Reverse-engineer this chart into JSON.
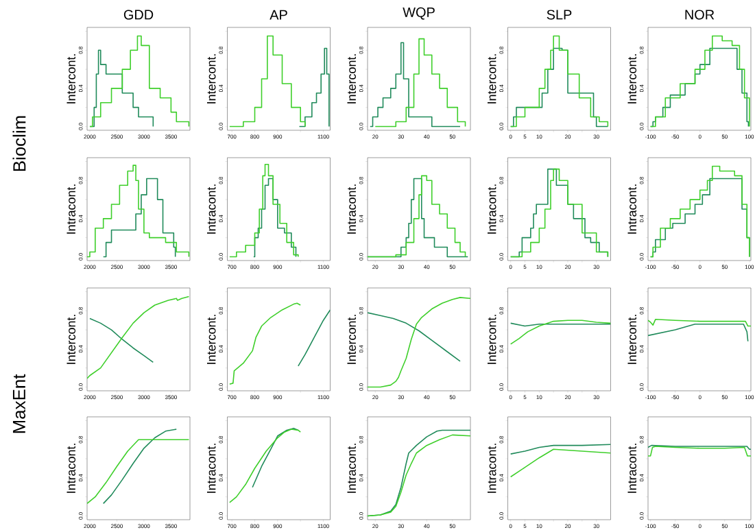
{
  "chart_data": [
    {
      "type": "step",
      "title": "GDD",
      "ylabel": "Intercont.",
      "annotations": [
        "Bioclim"
      ],
      "xlim": [
        1950,
        3850
      ],
      "xticks": [
        2000,
        2500,
        3000,
        3500
      ],
      "ylim": [
        -0.04,
        1.04
      ],
      "yticks": [
        {
          "value": 0,
          "label": "0.0"
        },
        {
          "value": 0.2,
          "label": null
        },
        {
          "value": 0.4,
          "label": "0.4"
        },
        {
          "value": 0.6,
          "label": null
        },
        {
          "value": 0.8,
          "label": "0.8"
        },
        {
          "value": 1,
          "label": null
        }
      ],
      "series": [
        {
          "color": "#1f8a5a",
          "x": [
            2000,
            2080,
            2120,
            2160,
            2200,
            2300,
            2500,
            2600,
            2800,
            2900,
            3150,
            3170
          ],
          "values": [
            0,
            0.2,
            0.55,
            0.8,
            0.65,
            0.55,
            0.55,
            0.35,
            0.2,
            0.1,
            0.1,
            0
          ]
        },
        {
          "color": "#3ecf2a",
          "x": [
            2000,
            2050,
            2200,
            2400,
            2600,
            2750,
            2880,
            2950,
            3100,
            3300,
            3500,
            3600,
            3800,
            3830
          ],
          "values": [
            0,
            0.1,
            0.25,
            0.4,
            0.6,
            0.8,
            0.95,
            0.85,
            0.4,
            0.3,
            0.15,
            0.05,
            0.05,
            0
          ]
        }
      ]
    },
    {
      "type": "step",
      "title": "AP",
      "ylabel": "Intercont.",
      "xlim": [
        680,
        1130
      ],
      "xticks": [
        700,
        800,
        900,
        {
          "value": 1000,
          "label": null
        },
        1100
      ],
      "ylim": [
        -0.04,
        1.04
      ],
      "yticks": [
        {
          "value": 0,
          "label": "0.0"
        },
        {
          "value": 0.2,
          "label": null
        },
        {
          "value": 0.4,
          "label": "0.4"
        },
        {
          "value": 0.6,
          "label": null
        },
        {
          "value": 0.8,
          "label": "0.8"
        },
        {
          "value": 1,
          "label": null
        }
      ],
      "series": [
        {
          "color": "#1f8a5a",
          "x": [
            995,
            1020,
            1050,
            1070,
            1090,
            1105,
            1115,
            1125
          ],
          "values": [
            0,
            0.1,
            0.25,
            0.35,
            0.55,
            0.82,
            0.55,
            0
          ]
        },
        {
          "color": "#3ecf2a",
          "x": [
            690,
            750,
            800,
            830,
            855,
            880,
            920,
            960,
            1000,
            1020
          ],
          "values": [
            0,
            0.05,
            0.2,
            0.5,
            0.95,
            0.75,
            0.45,
            0.2,
            0.05,
            0
          ]
        }
      ]
    },
    {
      "type": "step",
      "title": "WQP",
      "ylabel": "Intercont.",
      "xlim": [
        17,
        57
      ],
      "xticks": [
        20,
        30,
        40,
        50
      ],
      "ylim": [
        -0.04,
        1.04
      ],
      "yticks": [
        {
          "value": 0,
          "label": "0.0"
        },
        {
          "value": 0.2,
          "label": null
        },
        {
          "value": 0.4,
          "label": "0.4"
        },
        {
          "value": 0.6,
          "label": null
        },
        {
          "value": 0.8,
          "label": "0.8"
        },
        {
          "value": 1,
          "label": null
        }
      ],
      "series": [
        {
          "color": "#1f8a5a",
          "x": [
            18,
            19,
            21,
            23,
            26,
            28,
            30,
            31,
            33,
            40,
            42,
            53
          ],
          "values": [
            0,
            0.1,
            0.2,
            0.3,
            0.4,
            0.55,
            0.88,
            0.5,
            0.1,
            0.1,
            0,
            0
          ]
        },
        {
          "color": "#3ecf2a",
          "x": [
            20,
            28,
            32,
            35,
            37,
            39,
            42,
            45,
            48,
            52,
            55
          ],
          "values": [
            0,
            0.05,
            0.2,
            0.55,
            0.92,
            0.75,
            0.55,
            0.4,
            0.2,
            0.05,
            0
          ]
        }
      ]
    },
    {
      "type": "step",
      "title": "SLP",
      "ylabel": "Intercont.",
      "xlim": [
        -1,
        35
      ],
      "xticks": [
        0,
        5,
        10,
        {
          "value": 15,
          "label": null
        },
        20,
        {
          "value": 25,
          "label": null
        },
        30
      ],
      "ylim": [
        -0.04,
        1.04
      ],
      "yticks": [
        {
          "value": 0,
          "label": "0.0"
        },
        {
          "value": 0.2,
          "label": null
        },
        {
          "value": 0.4,
          "label": "0.4"
        },
        {
          "value": 0.6,
          "label": null
        },
        {
          "value": 0.8,
          "label": "0.8"
        },
        {
          "value": 1,
          "label": null
        }
      ],
      "series": [
        {
          "color": "#1f8a5a",
          "x": [
            0,
            1,
            2,
            8,
            11,
            13,
            15,
            18,
            20,
            25,
            29,
            30,
            34
          ],
          "values": [
            0,
            0.1,
            0.2,
            0.2,
            0.35,
            0.6,
            0.82,
            0.8,
            0.35,
            0.35,
            0.1,
            0,
            0
          ]
        },
        {
          "color": "#3ecf2a",
          "x": [
            0,
            2,
            5,
            10,
            12,
            14,
            15,
            17,
            20,
            24,
            28,
            31,
            34
          ],
          "values": [
            0,
            0.1,
            0.2,
            0.4,
            0.6,
            0.8,
            0.95,
            0.8,
            0.55,
            0.3,
            0.1,
            0.05,
            0
          ]
        }
      ]
    },
    {
      "type": "step",
      "title": "NOR",
      "ylabel": "Intercont.",
      "xlim": [
        -105,
        103
      ],
      "xticks": [
        -100,
        -50,
        0,
        50,
        100
      ],
      "ylim": [
        -0.04,
        1.04
      ],
      "yticks": [
        {
          "value": 0,
          "label": "0.0"
        },
        {
          "value": 0.2,
          "label": null
        },
        {
          "value": 0.4,
          "label": "0.4"
        },
        {
          "value": 0.6,
          "label": null
        },
        {
          "value": 0.8,
          "label": "0.8"
        },
        {
          "value": 1,
          "label": null
        }
      ],
      "series": [
        {
          "color": "#1f8a5a",
          "x": [
            -100,
            -95,
            -90,
            -75,
            -60,
            -30,
            -10,
            0,
            20,
            60,
            75,
            85,
            95,
            98
          ],
          "values": [
            0,
            0.05,
            0.1,
            0.2,
            0.33,
            0.45,
            0.55,
            0.65,
            0.82,
            0.82,
            0.6,
            0.35,
            0.05,
            0
          ]
        },
        {
          "color": "#3ecf2a",
          "x": [
            -100,
            -90,
            -70,
            -40,
            -10,
            10,
            25,
            45,
            65,
            80,
            90,
            100
          ],
          "values": [
            0,
            0.1,
            0.3,
            0.45,
            0.6,
            0.8,
            0.95,
            0.9,
            0.85,
            0.6,
            0.3,
            0
          ]
        }
      ]
    },
    {
      "type": "step",
      "ylabel": "Intracont.",
      "xlim": [
        1950,
        3850
      ],
      "xticks": [
        2000,
        2500,
        3000,
        3500
      ],
      "ylim": [
        -0.04,
        1.04
      ],
      "yticks": [
        {
          "value": 0,
          "label": "0.0"
        },
        {
          "value": 0.2,
          "label": null
        },
        {
          "value": 0.4,
          "label": "0.4"
        },
        {
          "value": 0.6,
          "label": null
        },
        {
          "value": 0.8,
          "label": "0.8"
        },
        {
          "value": 1,
          "label": null
        }
      ],
      "series": [
        {
          "color": "#1f8a5a",
          "x": [
            2250,
            2300,
            2400,
            2700,
            2850,
            2950,
            3050,
            3150,
            3250,
            3350,
            3450,
            3550,
            3580
          ],
          "values": [
            0,
            0.15,
            0.28,
            0.28,
            0.45,
            0.65,
            0.82,
            0.82,
            0.6,
            0.25,
            0.25,
            0.1,
            0
          ]
        },
        {
          "color": "#3ecf2a",
          "x": [
            1950,
            2000,
            2100,
            2250,
            2400,
            2550,
            2700,
            2800,
            2850,
            2900,
            3000,
            3100,
            3400,
            3600,
            3800,
            3830
          ],
          "values": [
            0,
            0.05,
            0.3,
            0.4,
            0.55,
            0.75,
            0.9,
            0.96,
            0.8,
            0.5,
            0.25,
            0.2,
            0.15,
            0.05,
            0.05,
            0
          ]
        }
      ]
    },
    {
      "type": "step",
      "ylabel": "Intracont.",
      "xlim": [
        680,
        1130
      ],
      "xticks": [
        700,
        800,
        900,
        {
          "value": 1000,
          "label": null
        },
        1100
      ],
      "ylim": [
        -0.04,
        1.04
      ],
      "yticks": [
        {
          "value": 0,
          "label": "0.0"
        },
        {
          "value": 0.2,
          "label": null
        },
        {
          "value": 0.4,
          "label": "0.4"
        },
        {
          "value": 0.6,
          "label": null
        },
        {
          "value": 0.8,
          "label": "0.8"
        },
        {
          "value": 1,
          "label": null
        }
      ],
      "series": [
        {
          "color": "#1f8a5a",
          "x": [
            795,
            800,
            815,
            830,
            845,
            860,
            880,
            900,
            930,
            960,
            980
          ],
          "values": [
            0,
            0.2,
            0.3,
            0.5,
            0.75,
            0.82,
            0.6,
            0.3,
            0.25,
            0.1,
            0
          ]
        },
        {
          "color": "#3ecf2a",
          "x": [
            690,
            720,
            760,
            800,
            820,
            835,
            845,
            860,
            880,
            910,
            940,
            970,
            990
          ],
          "values": [
            0,
            0.05,
            0.12,
            0.25,
            0.5,
            0.85,
            0.97,
            0.85,
            0.55,
            0.35,
            0.15,
            0.02,
            0
          ]
        }
      ]
    },
    {
      "type": "step",
      "ylabel": "Intracont.",
      "xlim": [
        17,
        57
      ],
      "xticks": [
        20,
        30,
        40,
        50
      ],
      "ylim": [
        -0.04,
        1.04
      ],
      "yticks": [
        {
          "value": 0,
          "label": "0.0"
        },
        {
          "value": 0.2,
          "label": null
        },
        {
          "value": 0.4,
          "label": "0.4"
        },
        {
          "value": 0.6,
          "label": null
        },
        {
          "value": 0.8,
          "label": "0.8"
        },
        {
          "value": 1,
          "label": null
        }
      ],
      "series": [
        {
          "color": "#1f8a5a",
          "x": [
            17,
            29,
            30,
            32,
            33,
            34,
            35,
            37,
            38,
            39,
            43,
            47,
            48,
            56
          ],
          "values": [
            0,
            0,
            0.1,
            0.2,
            0.35,
            0.6,
            0.82,
            0.82,
            0.4,
            0.2,
            0.1,
            0.1,
            0,
            0
          ]
        },
        {
          "color": "#3ecf2a",
          "x": [
            17,
            27,
            28,
            32,
            35,
            37,
            38,
            40,
            42,
            45,
            48,
            51,
            53,
            55
          ],
          "values": [
            0,
            0,
            0.02,
            0.15,
            0.4,
            0.65,
            0.85,
            0.8,
            0.55,
            0.45,
            0.3,
            0.15,
            0.05,
            0
          ]
        }
      ]
    },
    {
      "type": "step",
      "ylabel": "Intracont.",
      "xlim": [
        -1,
        35
      ],
      "xticks": [
        0,
        5,
        10,
        {
          "value": 15,
          "label": null
        },
        20,
        {
          "value": 25,
          "label": null
        },
        30
      ],
      "ylim": [
        -0.04,
        1.04
      ],
      "yticks": [
        {
          "value": 0,
          "label": "0.0"
        },
        {
          "value": 0.2,
          "label": null
        },
        {
          "value": 0.4,
          "label": "0.4"
        },
        {
          "value": 0.6,
          "label": null
        },
        {
          "value": 0.8,
          "label": "0.8"
        },
        {
          "value": 1,
          "label": null
        }
      ],
      "series": [
        {
          "color": "#1f8a5a",
          "x": [
            0,
            3,
            4,
            7,
            8,
            9,
            12,
            13,
            15,
            16,
            20,
            22,
            26,
            28,
            31,
            34
          ],
          "values": [
            0,
            0.05,
            0.2,
            0.3,
            0.45,
            0.55,
            0.55,
            0.92,
            0.92,
            0.75,
            0.55,
            0.4,
            0.2,
            0.15,
            0.05,
            0
          ]
        },
        {
          "color": "#3ecf2a",
          "x": [
            0,
            4,
            7,
            10,
            12,
            14,
            15,
            17,
            20,
            25,
            30,
            34
          ],
          "values": [
            0,
            0.05,
            0.15,
            0.3,
            0.5,
            0.8,
            0.92,
            0.8,
            0.55,
            0.25,
            0.05,
            0
          ]
        }
      ]
    },
    {
      "type": "step",
      "ylabel": "Intracont.",
      "xlim": [
        -105,
        103
      ],
      "xticks": [
        -100,
        -50,
        0,
        50,
        100
      ],
      "ylim": [
        -0.04,
        1.04
      ],
      "yticks": [
        {
          "value": 0,
          "label": "0.0"
        },
        {
          "value": 0.2,
          "label": null
        },
        {
          "value": 0.4,
          "label": "0.4"
        },
        {
          "value": 0.6,
          "label": null
        },
        {
          "value": 0.8,
          "label": "0.8"
        },
        {
          "value": 1,
          "label": null
        }
      ],
      "series": [
        {
          "color": "#1f8a5a",
          "x": [
            -100,
            -95,
            -90,
            -70,
            -55,
            -30,
            -10,
            5,
            20,
            75,
            85,
            95,
            100
          ],
          "values": [
            0,
            0.05,
            0.18,
            0.3,
            0.35,
            0.45,
            0.55,
            0.65,
            0.82,
            0.82,
            0.5,
            0.2,
            0
          ]
        },
        {
          "color": "#3ecf2a",
          "x": [
            -100,
            -95,
            -80,
            -60,
            -40,
            -20,
            0,
            15,
            25,
            40,
            70,
            85,
            95,
            100
          ],
          "values": [
            0,
            0.1,
            0.3,
            0.4,
            0.5,
            0.6,
            0.7,
            0.8,
            0.95,
            0.9,
            0.85,
            0.55,
            0.2,
            0
          ]
        }
      ]
    },
    {
      "type": "line",
      "ylabel": "Intercont.",
      "annotations": [
        "MaxEnt"
      ],
      "xlim": [
        1950,
        3850
      ],
      "xticks": [
        2000,
        2500,
        3000,
        3500
      ],
      "ylim": [
        -0.04,
        1.04
      ],
      "yticks": [
        {
          "value": 0,
          "label": "0.0"
        },
        {
          "value": 0.2,
          "label": null
        },
        {
          "value": 0.4,
          "label": "0.4"
        },
        {
          "value": 0.6,
          "label": null
        },
        {
          "value": 0.8,
          "label": "0.8"
        },
        {
          "value": 1,
          "label": null
        }
      ],
      "series": [
        {
          "color": "#1f8a5a",
          "x": [
            2000,
            2200,
            2400,
            2600,
            2800,
            3000,
            3170
          ],
          "values": [
            0.72,
            0.67,
            0.6,
            0.5,
            0.41,
            0.33,
            0.26
          ]
        },
        {
          "color": "#3ecf2a",
          "x": [
            1950,
            2000,
            2200,
            2400,
            2600,
            2800,
            3000,
            3200,
            3450,
            3600,
            3620,
            3700,
            3830
          ],
          "values": [
            0.09,
            0.12,
            0.2,
            0.36,
            0.52,
            0.67,
            0.78,
            0.86,
            0.91,
            0.93,
            0.91,
            0.93,
            0.95
          ]
        }
      ]
    },
    {
      "type": "line",
      "ylabel": "Intercont.",
      "xlim": [
        680,
        1130
      ],
      "xticks": [
        700,
        800,
        900,
        {
          "value": 1000,
          "label": null
        },
        1100
      ],
      "ylim": [
        -0.04,
        1.04
      ],
      "yticks": [
        {
          "value": 0,
          "label": "0.0"
        },
        {
          "value": 0.2,
          "label": null
        },
        {
          "value": 0.4,
          "label": "0.4"
        },
        {
          "value": 0.6,
          "label": null
        },
        {
          "value": 0.8,
          "label": "0.8"
        },
        {
          "value": 1,
          "label": null
        }
      ],
      "series": [
        {
          "color": "#1f8a5a",
          "x": [
            990,
            1020,
            1060,
            1100,
            1130
          ],
          "values": [
            0.22,
            0.34,
            0.52,
            0.7,
            0.81
          ]
        },
        {
          "color": "#3ecf2a",
          "x": [
            690,
            705,
            710,
            750,
            790,
            805,
            830,
            870,
            920,
            970,
            985,
            1000
          ],
          "values": [
            0.03,
            0.04,
            0.17,
            0.25,
            0.38,
            0.52,
            0.64,
            0.73,
            0.81,
            0.87,
            0.88,
            0.86
          ]
        }
      ]
    },
    {
      "type": "line",
      "ylabel": "Intercont.",
      "xlim": [
        17,
        57
      ],
      "xticks": [
        20,
        30,
        40,
        50
      ],
      "ylim": [
        -0.04,
        1.04
      ],
      "yticks": [
        {
          "value": 0,
          "label": "0.0"
        },
        {
          "value": 0.2,
          "label": null
        },
        {
          "value": 0.4,
          "label": "0.4"
        },
        {
          "value": 0.6,
          "label": null
        },
        {
          "value": 0.8,
          "label": "0.8"
        },
        {
          "value": 1,
          "label": null
        }
      ],
      "series": [
        {
          "color": "#1f8a5a",
          "x": [
            17,
            22,
            27,
            32,
            37,
            42,
            47,
            53
          ],
          "values": [
            0.78,
            0.75,
            0.72,
            0.67,
            0.59,
            0.49,
            0.39,
            0.27
          ]
        },
        {
          "color": "#3ecf2a",
          "x": [
            17,
            22,
            26,
            28,
            29,
            30,
            32,
            34,
            36,
            38,
            42,
            46,
            50,
            53,
            57
          ],
          "values": [
            0,
            0,
            0.02,
            0.06,
            0.1,
            0.17,
            0.3,
            0.5,
            0.66,
            0.73,
            0.82,
            0.88,
            0.92,
            0.94,
            0.93
          ]
        }
      ]
    },
    {
      "type": "line",
      "ylabel": "Intercont.",
      "xlim": [
        -1,
        35
      ],
      "xticks": [
        0,
        5,
        10,
        {
          "value": 15,
          "label": null
        },
        20,
        {
          "value": 25,
          "label": null
        },
        30
      ],
      "ylim": [
        -0.04,
        1.04
      ],
      "yticks": [
        {
          "value": 0,
          "label": "0.0"
        },
        {
          "value": 0.2,
          "label": null
        },
        {
          "value": 0.4,
          "label": "0.4"
        },
        {
          "value": 0.6,
          "label": null
        },
        {
          "value": 0.8,
          "label": "0.8"
        },
        {
          "value": 1,
          "label": null
        }
      ],
      "series": [
        {
          "color": "#1f8a5a",
          "x": [
            0,
            5,
            10,
            15,
            35
          ],
          "values": [
            0.67,
            0.64,
            0.66,
            0.66,
            0.66
          ]
        },
        {
          "color": "#3ecf2a",
          "x": [
            0,
            3,
            6,
            10,
            15,
            20,
            25,
            30,
            35
          ],
          "values": [
            0.45,
            0.51,
            0.58,
            0.64,
            0.69,
            0.7,
            0.7,
            0.68,
            0.67
          ]
        }
      ]
    },
    {
      "type": "line",
      "ylabel": "Intercont.",
      "xlim": [
        -105,
        103
      ],
      "xticks": [
        -100,
        -50,
        0,
        50,
        100
      ],
      "ylim": [
        -0.04,
        1.04
      ],
      "yticks": [
        {
          "value": 0,
          "label": "0.0"
        },
        {
          "value": 0.2,
          "label": null
        },
        {
          "value": 0.4,
          "label": "0.4"
        },
        {
          "value": 0.6,
          "label": null
        },
        {
          "value": 0.8,
          "label": "0.8"
        },
        {
          "value": 1,
          "label": null
        }
      ],
      "series": [
        {
          "color": "#1f8a5a",
          "x": [
            -105,
            -50,
            -10,
            50,
            88,
            95,
            97
          ],
          "values": [
            0.54,
            0.6,
            0.66,
            0.66,
            0.66,
            0.58,
            0.48
          ]
        },
        {
          "color": "#3ecf2a",
          "x": [
            -105,
            -100,
            -95,
            -90,
            -50,
            0,
            50,
            92,
            97,
            103
          ],
          "values": [
            0.7,
            0.68,
            0.65,
            0.71,
            0.7,
            0.69,
            0.69,
            0.69,
            0.64,
            0.64
          ]
        }
      ]
    },
    {
      "type": "line",
      "ylabel": "Intracont.",
      "xlim": [
        1950,
        3850
      ],
      "xticks": [
        2000,
        2500,
        3000,
        3500
      ],
      "ylim": [
        -0.04,
        1.04
      ],
      "yticks": [
        {
          "value": 0,
          "label": "0.0"
        },
        {
          "value": 0.2,
          "label": null
        },
        {
          "value": 0.4,
          "label": "0.4"
        },
        {
          "value": 0.6,
          "label": null
        },
        {
          "value": 0.8,
          "label": "0.8"
        },
        {
          "value": 1,
          "label": null
        }
      ],
      "series": [
        {
          "color": "#1f8a5a",
          "x": [
            2250,
            2400,
            2600,
            2800,
            3000,
            3200,
            3400,
            3600
          ],
          "values": [
            0.13,
            0.22,
            0.38,
            0.55,
            0.71,
            0.82,
            0.89,
            0.91
          ]
        },
        {
          "color": "#3ecf2a",
          "x": [
            1950,
            2100,
            2300,
            2500,
            2700,
            2900,
            3100,
            3830
          ],
          "values": [
            0.13,
            0.2,
            0.35,
            0.52,
            0.68,
            0.8,
            0.8,
            0.8
          ]
        }
      ]
    },
    {
      "type": "line",
      "ylabel": "Intracont.",
      "xlim": [
        680,
        1130
      ],
      "xticks": [
        700,
        800,
        900,
        {
          "value": 1000,
          "label": null
        },
        1100
      ],
      "ylim": [
        -0.04,
        1.04
      ],
      "yticks": [
        {
          "value": 0,
          "label": "0.0"
        },
        {
          "value": 0.2,
          "label": null
        },
        {
          "value": 0.4,
          "label": "0.4"
        },
        {
          "value": 0.6,
          "label": null
        },
        {
          "value": 0.8,
          "label": "0.8"
        },
        {
          "value": 1,
          "label": null
        }
      ],
      "series": [
        {
          "color": "#1f8a5a",
          "x": [
            790,
            830,
            870,
            900,
            940,
            970,
            990
          ],
          "values": [
            0.3,
            0.52,
            0.7,
            0.84,
            0.9,
            0.92,
            0.9
          ]
        },
        {
          "color": "#3ecf2a",
          "x": [
            690,
            720,
            760,
            800,
            850,
            900,
            930,
            960,
            990,
            1000
          ],
          "values": [
            0.14,
            0.2,
            0.33,
            0.5,
            0.68,
            0.82,
            0.88,
            0.91,
            0.9,
            0.88
          ]
        }
      ]
    },
    {
      "type": "line",
      "ylabel": "Intracont.",
      "xlim": [
        17,
        57
      ],
      "xticks": [
        20,
        30,
        40,
        50
      ],
      "ylim": [
        -0.04,
        1.04
      ],
      "yticks": [
        {
          "value": 0,
          "label": "0.0"
        },
        {
          "value": 0.2,
          "label": null
        },
        {
          "value": 0.4,
          "label": "0.4"
        },
        {
          "value": 0.6,
          "label": null
        },
        {
          "value": 0.8,
          "label": "0.8"
        },
        {
          "value": 1,
          "label": null
        }
      ],
      "series": [
        {
          "color": "#1f8a5a",
          "x": [
            17,
            22,
            26,
            28,
            30,
            32,
            33,
            36,
            40,
            44,
            46,
            57
          ],
          "values": [
            0,
            0.01,
            0.05,
            0.12,
            0.3,
            0.55,
            0.66,
            0.74,
            0.83,
            0.89,
            0.9,
            0.9
          ]
        },
        {
          "color": "#3ecf2a",
          "x": [
            17,
            22,
            26,
            28,
            30,
            32,
            34,
            36,
            40,
            45,
            50,
            57
          ],
          "values": [
            0,
            0.01,
            0.04,
            0.1,
            0.25,
            0.43,
            0.55,
            0.66,
            0.74,
            0.8,
            0.85,
            0.84
          ]
        }
      ]
    },
    {
      "type": "line",
      "ylabel": "Intracont.",
      "xlim": [
        -1,
        35
      ],
      "xticks": [
        0,
        5,
        10,
        {
          "value": 15,
          "label": null
        },
        20,
        {
          "value": 25,
          "label": null
        },
        30
      ],
      "ylim": [
        -0.04,
        1.04
      ],
      "yticks": [
        {
          "value": 0,
          "label": "0.0"
        },
        {
          "value": 0.2,
          "label": null
        },
        {
          "value": 0.4,
          "label": "0.4"
        },
        {
          "value": 0.6,
          "label": null
        },
        {
          "value": 0.8,
          "label": "0.8"
        },
        {
          "value": 1,
          "label": null
        }
      ],
      "series": [
        {
          "color": "#1f8a5a",
          "x": [
            0,
            5,
            10,
            15,
            25,
            35
          ],
          "values": [
            0.65,
            0.68,
            0.72,
            0.74,
            0.74,
            0.75
          ]
        },
        {
          "color": "#3ecf2a",
          "x": [
            0,
            5,
            10,
            15,
            25,
            35
          ],
          "values": [
            0.41,
            0.51,
            0.61,
            0.7,
            0.68,
            0.66
          ]
        }
      ]
    },
    {
      "type": "line",
      "ylabel": "Intracont.",
      "xlim": [
        -105,
        103
      ],
      "xticks": [
        -100,
        -50,
        0,
        50,
        100
      ],
      "ylim": [
        -0.04,
        1.04
      ],
      "yticks": [
        {
          "value": 0,
          "label": "0.0"
        },
        {
          "value": 0.2,
          "label": null
        },
        {
          "value": 0.4,
          "label": "0.4"
        },
        {
          "value": 0.6,
          "label": null
        },
        {
          "value": 0.8,
          "label": "0.8"
        },
        {
          "value": 1,
          "label": null
        }
      ],
      "series": [
        {
          "color": "#1f8a5a",
          "x": [
            -105,
            -98,
            -50,
            0,
            50,
            95,
            100,
            103
          ],
          "values": [
            0.72,
            0.74,
            0.73,
            0.73,
            0.73,
            0.73,
            0.7,
            0.7
          ]
        },
        {
          "color": "#3ecf2a",
          "x": [
            -105,
            -100,
            -96,
            -90,
            -50,
            0,
            50,
            90,
            96,
            103
          ],
          "values": [
            0.63,
            0.63,
            0.72,
            0.73,
            0.72,
            0.71,
            0.71,
            0.72,
            0.63,
            0.63
          ]
        }
      ]
    }
  ]
}
